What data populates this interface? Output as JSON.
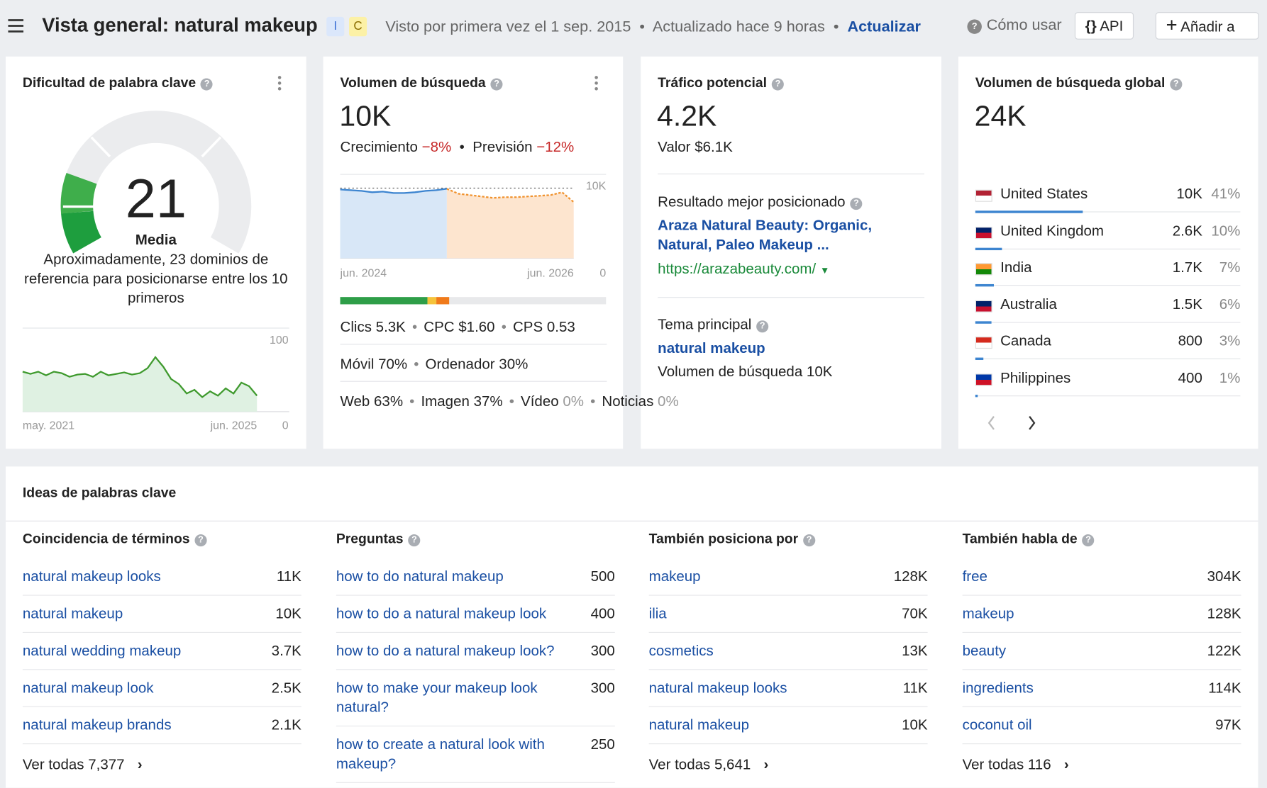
{
  "header": {
    "title": "Vista general: natural makeup",
    "badges": [
      "I",
      "C"
    ],
    "first_seen": "Visto por primera vez el 1 sep. 2015",
    "updated": "Actualizado hace 9 horas",
    "refresh": "Actualizar",
    "how_to": "Cómo usar",
    "api": "API",
    "add": "Añadir a"
  },
  "difficulty": {
    "title": "Dificultad de palabra clave",
    "value": 21,
    "level": "Media",
    "description": "Aproximadamente, 23 dominios de referencia para posicionarse entre los 10 primeros",
    "chart": {
      "values": [
        55,
        52,
        55,
        50,
        55,
        53,
        48,
        51,
        52,
        48,
        55,
        50,
        52,
        54,
        51,
        53,
        60,
        75,
        62,
        45,
        38,
        25,
        30,
        20,
        28,
        22,
        32,
        25,
        40,
        35,
        22
      ],
      "ylim": [
        0,
        100
      ],
      "yticks": [
        0,
        100
      ],
      "x_labels": [
        "may. 2021",
        "jun. 2025"
      ]
    }
  },
  "volume": {
    "title": "Volumen de búsqueda",
    "value": "10K",
    "growth_label": "Crecimiento",
    "growth": "−8%",
    "forecast_label": "Previsión",
    "forecast": "−12%",
    "chart": {
      "actual": [
        9800,
        9700,
        9600,
        9400,
        9500,
        9300,
        9300,
        9400,
        9600,
        9700,
        9900
      ],
      "forecast": [
        9900,
        9200,
        9000,
        8800,
        8600,
        8700,
        8700,
        8800,
        8900,
        9000,
        9400,
        8000
      ],
      "ylim": [
        0,
        10000
      ],
      "yticks": [
        0,
        {
          "value": 10000,
          "label": "10K"
        }
      ],
      "x_labels": [
        "jun. 2024",
        "jun. 2026"
      ]
    },
    "stats": [
      [
        {
          "label": "Clics",
          "value": "5.3K"
        },
        {
          "label": "CPC",
          "value": "$1.60"
        },
        {
          "label": "CPS",
          "value": "0.53"
        }
      ],
      [
        {
          "label": "Móvil",
          "value": "70%"
        },
        {
          "label": "Ordenador",
          "value": "30%"
        }
      ],
      [
        {
          "label": "Web",
          "value": "63%"
        },
        {
          "label": "Imagen",
          "value": "37%"
        },
        {
          "label": "Vídeo",
          "value": "0%"
        },
        {
          "label": "Noticias",
          "value": "0%"
        }
      ]
    ]
  },
  "traffic": {
    "title": "Tráfico potencial",
    "value": "4.2K",
    "worth": "Valor $6.1K",
    "top_result_label": "Resultado mejor posicionado",
    "top_result_title": "Araza Natural Beauty: Organic, Natural, Paleo Makeup ...",
    "top_result_url": "https://arazabeauty.com/",
    "parent_topic_label": "Tema principal",
    "parent_topic": "natural makeup",
    "parent_volume": "Volumen de búsqueda 10K"
  },
  "global": {
    "title": "Volumen de búsqueda global",
    "value": "24K",
    "countries": [
      {
        "name": "United States",
        "volume": "10K",
        "share": {
          "value": 41,
          "label": "41%"
        }
      },
      {
        "name": "United Kingdom",
        "volume": "2.6K",
        "share": {
          "value": 10,
          "label": "10%"
        }
      },
      {
        "name": "India",
        "volume": "1.7K",
        "share": {
          "value": 7,
          "label": "7%"
        }
      },
      {
        "name": "Australia",
        "volume": "1.5K",
        "share": {
          "value": 6,
          "label": "6%"
        }
      },
      {
        "name": "Canada",
        "volume": "800",
        "share": {
          "value": 3,
          "label": "3%"
        }
      },
      {
        "name": "Philippines",
        "volume": "400",
        "share": {
          "value": 1,
          "label": "1%"
        }
      }
    ]
  },
  "ideas": {
    "title": "Ideas de palabras clave",
    "columns": [
      {
        "title": "Coincidencia de términos",
        "rows": [
          [
            "natural makeup looks",
            "11K"
          ],
          [
            "natural makeup",
            "10K"
          ],
          [
            "natural wedding makeup",
            "3.7K"
          ],
          [
            "natural makeup look",
            "2.5K"
          ],
          [
            "natural makeup brands",
            "2.1K"
          ]
        ],
        "view_all": "Ver todas 7,377"
      },
      {
        "title": "Preguntas",
        "rows": [
          [
            "how to do natural makeup",
            "500"
          ],
          [
            "how to do a natural makeup look",
            "400"
          ],
          [
            "how to do a natural makeup look?",
            "300"
          ],
          [
            "how to make your makeup look natural?",
            "300"
          ],
          [
            "how to create a natural look with makeup?",
            "250"
          ]
        ]
      },
      {
        "title": "También posiciona por",
        "rows": [
          [
            "makeup",
            "128K"
          ],
          [
            "ilia",
            "70K"
          ],
          [
            "cosmetics",
            "13K"
          ],
          [
            "natural makeup looks",
            "11K"
          ],
          [
            "natural makeup",
            "10K"
          ]
        ],
        "view_all": "Ver todas 5,641"
      },
      {
        "title": "También habla de",
        "rows": [
          [
            "free",
            "304K"
          ],
          [
            "makeup",
            "128K"
          ],
          [
            "beauty",
            "122K"
          ],
          [
            "ingredients",
            "114K"
          ],
          [
            "coconut oil",
            "97K"
          ]
        ],
        "view_all": "Ver todas 116"
      }
    ]
  }
}
